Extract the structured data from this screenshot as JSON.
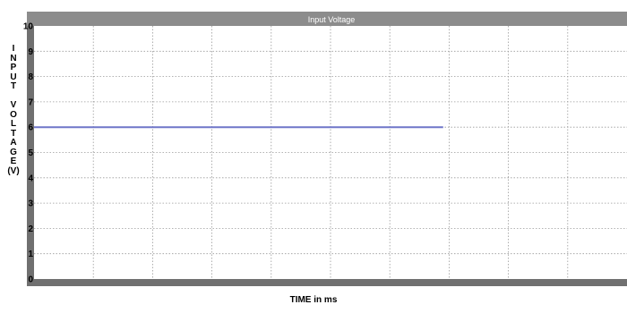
{
  "chart_data": {
    "type": "line",
    "title": "Input Voltage",
    "xlabel": "TIME in ms",
    "ylabel": "I\nN\nP\nU\nT\n\nV\nO\nL\nT\nA\nG\nE\n(V)",
    "ylim": [
      0,
      10
    ],
    "y_ticks": [
      "0",
      "1",
      "2",
      "3",
      "4",
      "5",
      "6",
      "7",
      "8",
      "9",
      "10"
    ],
    "x_divisions": 10,
    "grid": true,
    "series": [
      {
        "x": [
          0,
          6.9
        ],
        "y": [
          6,
          6
        ],
        "color": "#6f76c9"
      }
    ],
    "colors": {
      "title_bar": "#8c8c8c",
      "frame": "#707070",
      "grid": "#9a9a9a",
      "tick_text": "#000000"
    }
  }
}
